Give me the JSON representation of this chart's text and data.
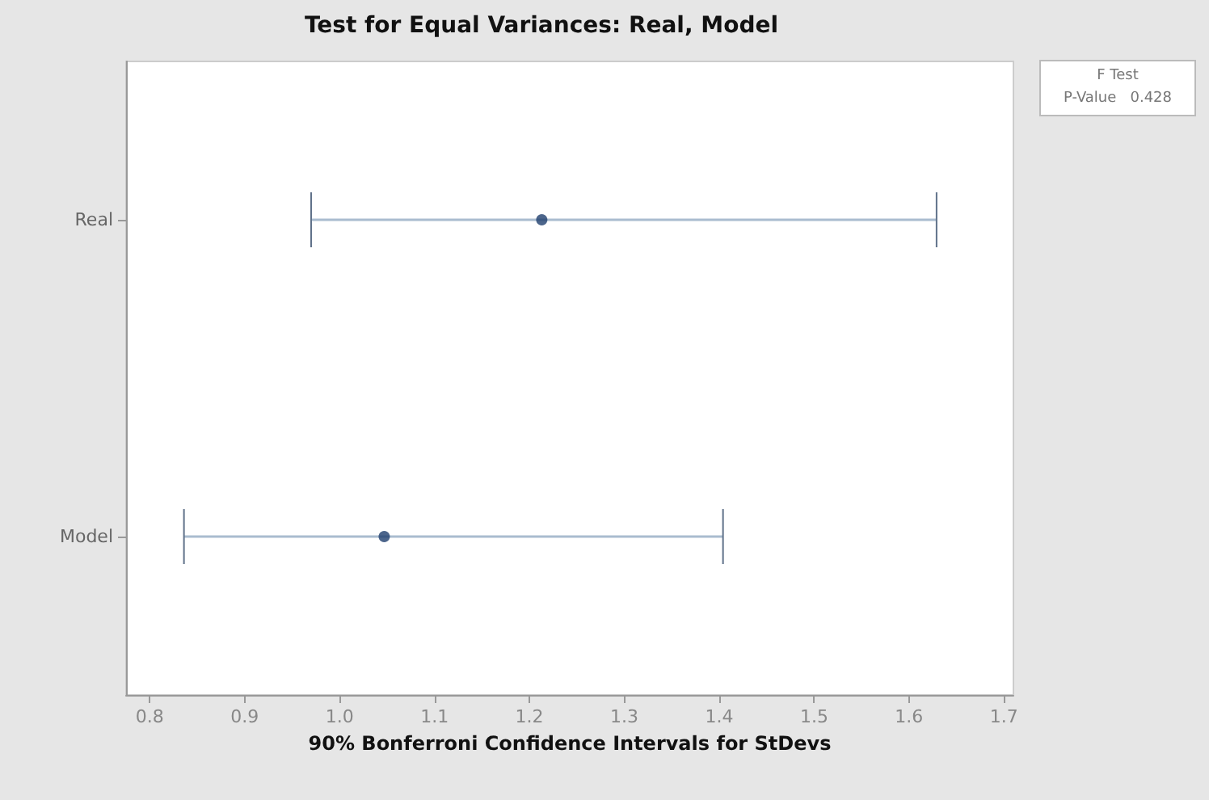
{
  "chart_data": {
    "type": "scatter",
    "orientation": "horizontal",
    "title": "Test for Equal Variances: Real, Model",
    "xlabel": "90% Bonferroni Confidence Intervals for StDevs",
    "categories": [
      "Real",
      "Model"
    ],
    "values": [
      1.213,
      1.047
    ],
    "color": "#1f3f6e",
    "marker": "circle",
    "errors": [
      [
        0.97,
        1.629
      ],
      [
        0.836,
        1.404
      ]
    ],
    "xlim": [
      0.775,
      1.71
    ],
    "xticks": [
      0.8,
      0.9,
      {
        "value": 1,
        "label": "1.0"
      },
      1.1,
      1.2,
      1.3,
      1.4,
      1.5,
      1.6,
      1.7
    ],
    "grid": false,
    "annotations": [
      "F Test",
      "P-Value   0.428"
    ]
  }
}
